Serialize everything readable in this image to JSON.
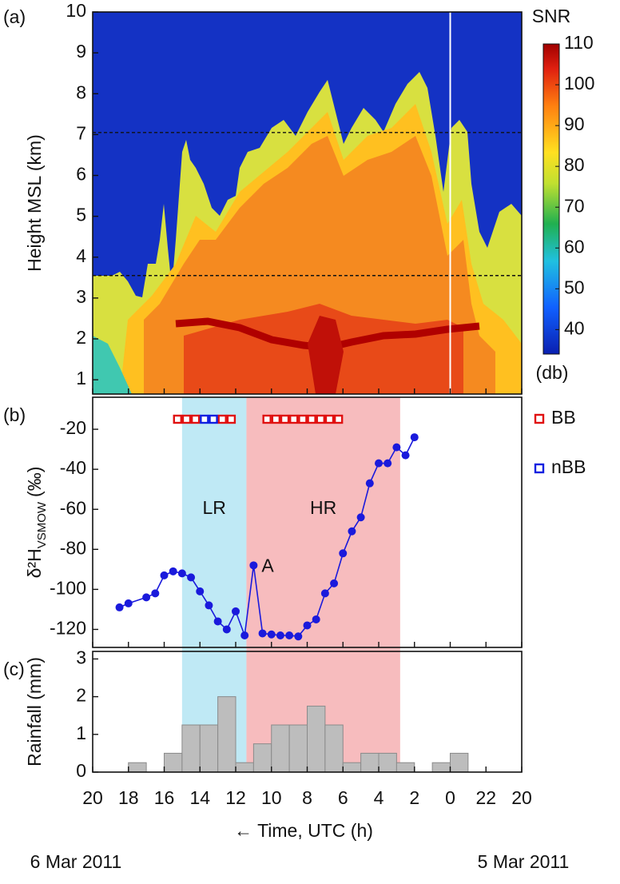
{
  "chart_data": [
    {
      "type": "heatmap",
      "panel_label": "(a)",
      "ylabel": "Height MSL (km)",
      "ylim": [
        0.65,
        10
      ],
      "yticks": [
        1,
        2,
        3,
        4,
        5,
        6,
        7,
        8,
        9,
        10
      ],
      "hlines": [
        7.05,
        3.55
      ],
      "vline": 0,
      "colorbar": {
        "title": "SNR",
        "unit": "(db)",
        "lim": [
          34,
          110
        ],
        "ticks": [
          40,
          50,
          60,
          70,
          80,
          90,
          100,
          110
        ]
      }
    },
    {
      "type": "line",
      "panel_label": "(b)",
      "ylabel": "δ²H",
      "ylabel_sub": "VSMOW",
      "ylabel_unit": "(‰)",
      "color": "#1a1adc",
      "x": [
        18.5,
        18,
        17,
        16.5,
        16,
        15.5,
        15,
        14.5,
        14,
        13.5,
        13,
        12.5,
        12,
        11.5,
        11,
        10.5,
        10,
        9.5,
        9,
        8.5,
        8,
        7.5,
        7,
        6.5,
        6,
        5.5,
        5,
        4.5,
        4,
        3.5,
        3,
        2.5,
        2
      ],
      "values": [
        -109,
        -107,
        -104,
        -102,
        -93,
        -91,
        -92,
        -94,
        -101,
        -108,
        -116,
        -120,
        -111,
        -123,
        -88,
        -122,
        -122.5,
        -123,
        -123,
        -123.5,
        -118,
        -115,
        -102,
        -97,
        -82,
        -71,
        -64,
        -47,
        -37,
        -37,
        -29,
        -33,
        -24
      ],
      "ylim": [
        -129,
        -4
      ],
      "yticks": [
        -20,
        -40,
        -60,
        -80,
        -100,
        -120
      ],
      "annotations": [
        {
          "text": "A",
          "x": 11,
          "y": -88
        }
      ],
      "regions": [
        {
          "label": "LR",
          "x0": 15,
          "x1": 11.4,
          "color": "#bfe9f5"
        },
        {
          "label": "HR",
          "x0": 11.4,
          "x1": 2.8,
          "color": "#f7bcbe"
        }
      ],
      "markers": [
        {
          "name": "BB",
          "color": "#e01010",
          "x": [
            15.25,
            14.75,
            14.25,
            12.75,
            12.25,
            10.25,
            9.75,
            9.25,
            8.75,
            8.25,
            7.75,
            7.25,
            6.75,
            6.25
          ]
        },
        {
          "name": "nBB",
          "color": "#1020e0",
          "x": [
            13.75,
            13.25
          ]
        }
      ]
    },
    {
      "type": "histogram",
      "panel_label": "(c)",
      "ylabel": "Rainfall (mm)",
      "color": "#bdbdbd",
      "bins": [
        18,
        17,
        16,
        15,
        14,
        13,
        12,
        11,
        10,
        9,
        8,
        7,
        6,
        5,
        4,
        3,
        2,
        1,
        0,
        -1
      ],
      "values": [
        0.25,
        0,
        0.5,
        1.25,
        1.25,
        2,
        0.25,
        0.75,
        1.25,
        1.25,
        1.75,
        1.25,
        0.25,
        0.5,
        0.5,
        0.25,
        0,
        0.25,
        0.5
      ],
      "ylim": [
        0,
        3.2
      ],
      "yticks": [
        0,
        1,
        2,
        3
      ],
      "xlim": [
        20,
        -4
      ],
      "xticks": [
        20,
        18,
        16,
        14,
        12,
        10,
        8,
        6,
        4,
        2,
        0,
        {
          "value": -2,
          "label": "22"
        },
        {
          "value": -4,
          "label": "20"
        }
      ],
      "xlabel": "← Time, UTC (h)",
      "date_left": "6 Mar 2011",
      "date_right": "5 Mar 2011"
    }
  ]
}
